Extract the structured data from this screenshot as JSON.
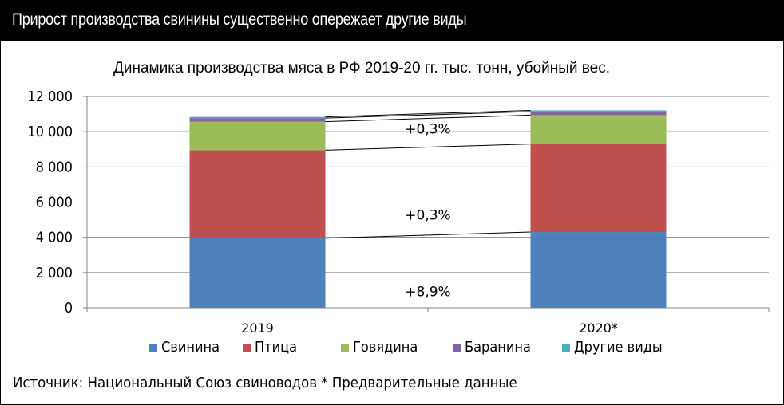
{
  "header": {
    "title": "Прирост производства свинины существенно опережает другие виды"
  },
  "footer": {
    "source": "Источник: Национальный Союз свиноводов * Предварительные данные"
  },
  "colors": {
    "pork": "#4f81bd",
    "poultry": "#c0504d",
    "beef": "#9bbb59",
    "lamb": "#8064a2",
    "other": "#4bacc6"
  },
  "chart_data": {
    "type": "bar",
    "stacked": true,
    "title": "Динамика производства мяса в РФ 2019-20 гг. тыс. тонн, убойный вес.",
    "categories": [
      "2019",
      "2020*"
    ],
    "series": [
      {
        "name": "Свинина",
        "color": "#4f81bd",
        "values": [
          3950,
          4300
        ]
      },
      {
        "name": "Птица",
        "color": "#c0504d",
        "values": [
          5000,
          5000
        ]
      },
      {
        "name": "Говядина",
        "color": "#9bbb59",
        "values": [
          1620,
          1640
        ]
      },
      {
        "name": "Баранина",
        "color": "#8064a2",
        "values": [
          200,
          200
        ]
      },
      {
        "name": "Другие виды",
        "color": "#4bacc6",
        "values": [
          70,
          70
        ]
      }
    ],
    "ylim": [
      0,
      12000
    ],
    "yticks": [
      0,
      2000,
      4000,
      6000,
      8000,
      10000,
      12000
    ],
    "ytick_labels": [
      "0",
      "2 000",
      "4 000",
      "6 000",
      "8 000",
      "10 000",
      "12 000"
    ],
    "grid": true,
    "legend": "bottom",
    "annotations": [
      "+8,9%",
      "+0,3%",
      "+0,3%"
    ]
  }
}
